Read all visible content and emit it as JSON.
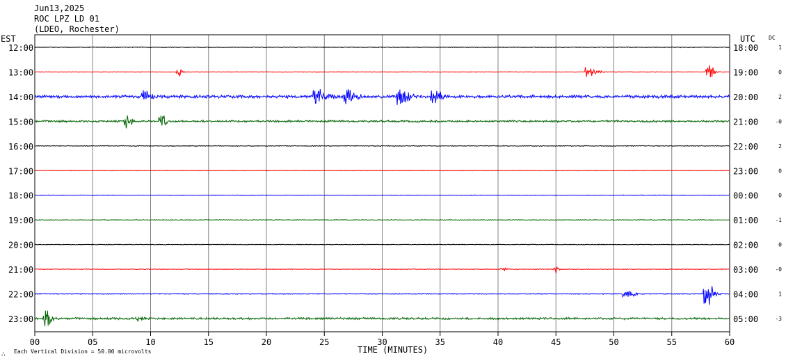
{
  "header": {
    "date": "Jun13,2025",
    "station": "ROC LPZ LD 01",
    "network": "(LDEO, Rochester)"
  },
  "chart_data": {
    "type": "line",
    "title": "ROC LPZ LD 01",
    "left_axis_label": "EST",
    "right_axis_label": "UTC",
    "dc_label": "DC",
    "xlabel": "TIME (MINUTES)",
    "xlim": [
      0,
      60
    ],
    "x_ticks": [
      "00",
      "05",
      "10",
      "15",
      "20",
      "25",
      "30",
      "35",
      "40",
      "45",
      "50",
      "55",
      "60"
    ],
    "x_tick_values": [
      0,
      5,
      10,
      15,
      20,
      25,
      30,
      35,
      40,
      45,
      50,
      55,
      60
    ],
    "footer_note": "Each Vertical Division =   50.00 microvolts",
    "rows": [
      {
        "est": "12:00",
        "utc": "18:00",
        "dc": "1",
        "color": "#000000",
        "noise": 0.8,
        "events": []
      },
      {
        "est": "13:00",
        "utc": "19:00",
        "dc": "0",
        "color": "#ff0000",
        "noise": 0.7,
        "events": [
          [
            12.5,
            0.7,
            4
          ],
          [
            47.8,
            1.0,
            12
          ],
          [
            58.2,
            1.0,
            8
          ]
        ]
      },
      {
        "est": "14:00",
        "utc": "20:00",
        "dc": "2",
        "color": "#0000ff",
        "noise": 3.2,
        "events": [
          [
            9.5,
            0.9,
            9
          ],
          [
            24.3,
            1.3,
            14
          ],
          [
            27.0,
            1.1,
            12
          ],
          [
            31.5,
            1.3,
            13
          ],
          [
            34.5,
            1.2,
            10
          ]
        ]
      },
      {
        "est": "15:00",
        "utc": "21:00",
        "dc": "-0",
        "color": "#006400",
        "noise": 2.2,
        "events": [
          [
            8.0,
            1.2,
            5
          ],
          [
            11.0,
            1.3,
            5
          ]
        ]
      },
      {
        "est": "16:00",
        "utc": "22:00",
        "dc": "2",
        "color": "#000000",
        "noise": 0.9,
        "events": []
      },
      {
        "est": "17:00",
        "utc": "23:00",
        "dc": "0",
        "color": "#ff0000",
        "noise": 0.7,
        "events": []
      },
      {
        "est": "18:00",
        "utc": "00:00",
        "dc": "0",
        "color": "#0000ff",
        "noise": 0.7,
        "events": []
      },
      {
        "est": "19:00",
        "utc": "01:00",
        "dc": "-1",
        "color": "#006400",
        "noise": 0.8,
        "events": []
      },
      {
        "est": "20:00",
        "utc": "02:00",
        "dc": "0",
        "color": "#000000",
        "noise": 0.8,
        "events": []
      },
      {
        "est": "21:00",
        "utc": "03:00",
        "dc": "-0",
        "color": "#ff0000",
        "noise": 0.7,
        "events": [
          [
            40.5,
            0.5,
            4
          ],
          [
            45.0,
            0.6,
            4
          ]
        ]
      },
      {
        "est": "22:00",
        "utc": "04:00",
        "dc": "1",
        "color": "#0000ff",
        "noise": 1.0,
        "events": [
          [
            51.0,
            0.5,
            12
          ],
          [
            58.0,
            1.9,
            10
          ]
        ]
      },
      {
        "est": "23:00",
        "utc": "05:00",
        "dc": "-3",
        "color": "#006400",
        "noise": 2.3,
        "events": [
          [
            1.0,
            2.0,
            6
          ],
          [
            9.0,
            0.8,
            4
          ]
        ]
      }
    ]
  }
}
